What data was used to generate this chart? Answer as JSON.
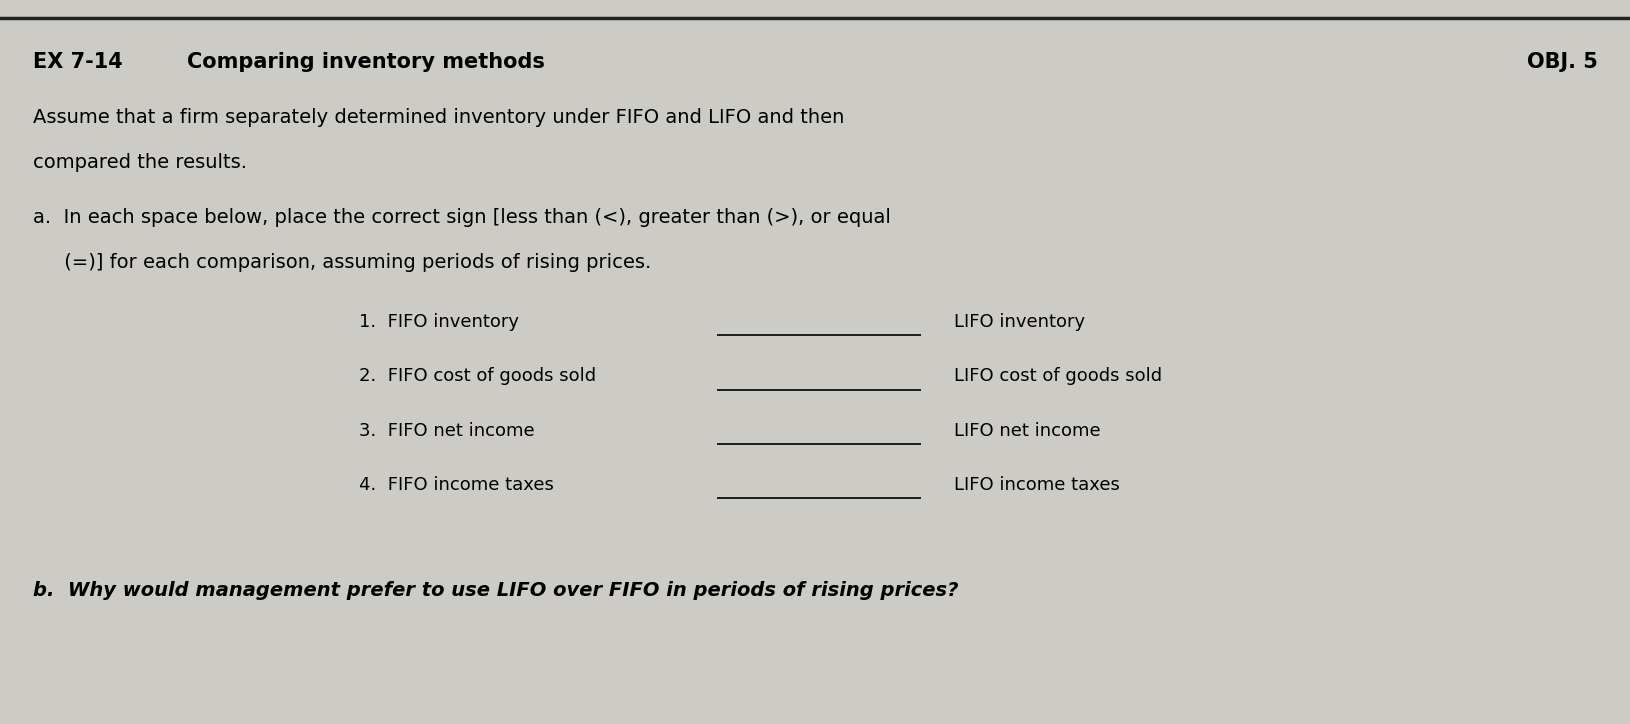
{
  "bg_color": "#cccbc6",
  "title_ex": "EX 7-14",
  "title_main": "Comparing inventory methods",
  "obj_label": "OBJ. 5",
  "body_line1": "Assume that a firm separately determined inventory under FIFO and LIFO and then",
  "body_line2": "compared the results.",
  "part_a_line1": "a.  In each space below, place the correct sign [less than (<), greater than (>), or equal",
  "part_a_line2": "     (=)] for each comparison, assuming periods of rising prices.",
  "items_left": [
    "1.  FIFO inventory",
    "2.  FIFO cost of goods sold",
    "3.  FIFO net income",
    "4.  FIFO income taxes"
  ],
  "items_right": [
    "LIFO inventory",
    "LIFO cost of goods sold",
    "LIFO net income",
    "LIFO income taxes"
  ],
  "part_b": "b.  Why would management prefer to use LIFO over FIFO in periods of rising prices?",
  "title_fontsize": 15,
  "body_fontsize": 14,
  "item_fontsize": 13,
  "top_border_color": "#222222"
}
